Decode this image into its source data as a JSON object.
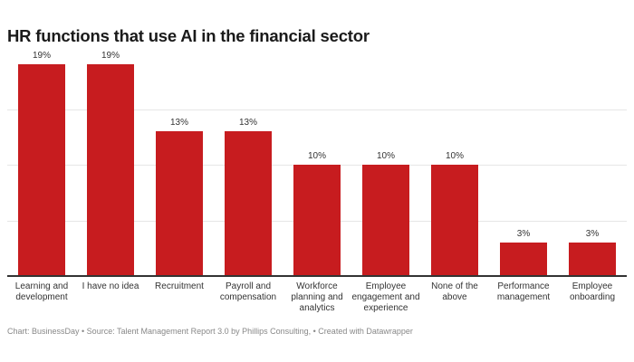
{
  "chart_data": {
    "type": "bar",
    "title": "HR functions that use AI in the financial sector",
    "categories": [
      "Learning and development",
      "I have no idea",
      "Recruitment",
      "Payroll and compensation",
      "Workforce planning and analytics",
      "Employee engagement and experience",
      "None of the above",
      "Performance management",
      "Employee onboarding"
    ],
    "values": [
      19,
      19,
      13,
      13,
      10,
      10,
      10,
      3,
      3
    ],
    "value_labels": [
      "19%",
      "19%",
      "13%",
      "13%",
      "10%",
      "10%",
      "10%",
      "3%",
      "3%"
    ],
    "unit": "%",
    "ylim": [
      0,
      20
    ],
    "gridlines": [
      5,
      10,
      15
    ],
    "grid": true,
    "bar_color": "#c71c1f",
    "xlabel": "",
    "ylabel": ""
  },
  "footer": "Chart: BusinessDay • Source: Talent Management Report 3.0 by Phillips Consulting, • Created with Datawrapper"
}
